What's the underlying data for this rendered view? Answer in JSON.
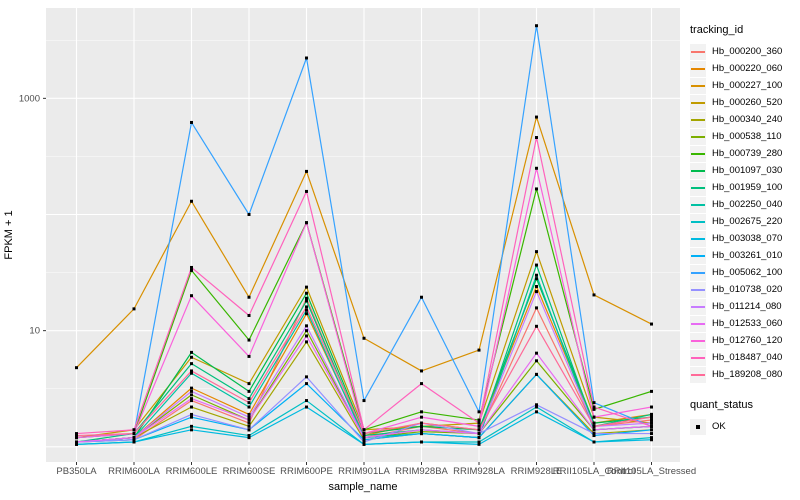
{
  "chart_data": {
    "type": "line",
    "title": "",
    "xlabel": "sample_name",
    "ylabel": "FPKM + 1",
    "y_scale": "log10",
    "y_axis_range_approx": [
      0.75,
      6000
    ],
    "y_ticks": [
      {
        "label": "10",
        "value": 10
      },
      {
        "label": "1000",
        "value": 1000
      }
    ],
    "grid": "major-white-on-gray-panel",
    "panel_bg": "#EBEBEB",
    "grid_color": "#FFFFFF",
    "tick_text_color": "#4D4D4D",
    "point_marker": {
      "shape": "square",
      "color": "#000000"
    },
    "legend_position": "right",
    "legend": {
      "color_title": "tracking_id",
      "shape_title": "quant_status",
      "shape_items": [
        {
          "label": "OK",
          "shape": "square",
          "color": "#000000"
        }
      ]
    },
    "categories": [
      "PB350LA",
      "RRIM600LA",
      "RRIM600LE",
      "RRIM600SE",
      "RRIM600PE",
      "RRIM901LA",
      "RRIM928BA",
      "RRIM928LA",
      "RRIM928LE",
      "RRII105LA_Control",
      "RRII105LA_Stressed"
    ],
    "series": [
      {
        "name": "Hb_000200_360",
        "color": "#F8766D",
        "values": [
          1.1,
          1.15,
          2.5,
          1.6,
          19,
          1.2,
          1.5,
          1.3,
          15.7,
          1.5,
          1.7
        ]
      },
      {
        "name": "Hb_000220_060",
        "color": "#E58700",
        "values": [
          1.1,
          1.2,
          3.2,
          1.9,
          14,
          1.25,
          1.6,
          1.4,
          24,
          1.6,
          1.9
        ]
      },
      {
        "name": "Hb_000227_100",
        "color": "#D89000",
        "values": [
          4.8,
          15.4,
          130,
          19.4,
          235,
          8.6,
          4.5,
          6.8,
          690,
          20.3,
          11.4
        ]
      },
      {
        "name": "Hb_000260_520",
        "color": "#C09B00",
        "values": [
          1.2,
          1.4,
          5.9,
          3.5,
          23.7,
          1.4,
          1.5,
          1.6,
          47.9,
          1.8,
          1.6
        ]
      },
      {
        "name": "Hb_000340_240",
        "color": "#A3A500",
        "values": [
          1.1,
          1.2,
          2.2,
          1.5,
          8,
          1.15,
          1.3,
          1.2,
          4.2,
          1.3,
          1.4
        ]
      },
      {
        "name": "Hb_000538_110",
        "color": "#7CAE00",
        "values": [
          1.1,
          1.2,
          2.8,
          1.7,
          10,
          1.2,
          1.35,
          1.3,
          5.5,
          1.4,
          1.5
        ]
      },
      {
        "name": "Hb_000739_280",
        "color": "#39B600",
        "values": [
          1.2,
          1.3,
          33,
          8.3,
          85,
          1.4,
          2.0,
          1.7,
          166,
          2.1,
          3.0
        ]
      },
      {
        "name": "Hb_001097_030",
        "color": "#00BB4E",
        "values": [
          1.1,
          1.2,
          6.5,
          3.0,
          21,
          1.3,
          1.5,
          1.4,
          28,
          1.6,
          1.8
        ]
      },
      {
        "name": "Hb_001959_100",
        "color": "#00BF7D",
        "values": [
          1.1,
          1.3,
          5.2,
          2.6,
          18,
          1.25,
          1.4,
          1.3,
          36.7,
          1.5,
          1.9
        ]
      },
      {
        "name": "Hb_002250_040",
        "color": "#00C1A3",
        "values": [
          1.1,
          1.2,
          4.3,
          2.2,
          15,
          1.2,
          1.3,
          1.2,
          30,
          1.4,
          1.5
        ]
      },
      {
        "name": "Hb_002675_220",
        "color": "#00BFC4",
        "values": [
          1.05,
          1.1,
          1.5,
          1.25,
          2.5,
          1.05,
          1.1,
          1.1,
          2.2,
          1.1,
          1.2
        ]
      },
      {
        "name": "Hb_003038_070",
        "color": "#00BAE0",
        "values": [
          1.05,
          1.1,
          1.4,
          1.2,
          2.2,
          1.05,
          1.1,
          1.05,
          2.0,
          1.1,
          1.15
        ]
      },
      {
        "name": "Hb_003261_010",
        "color": "#00B0F6",
        "values": [
          1.1,
          1.15,
          1.8,
          1.4,
          3.5,
          1.15,
          1.3,
          1.2,
          4.2,
          1.25,
          1.4
        ]
      },
      {
        "name": "Hb_005062_100",
        "color": "#35A2FF",
        "values": [
          1.2,
          1.3,
          620,
          100,
          2225,
          2.5,
          19.4,
          2.0,
          4220,
          2.4,
          1.5
        ]
      },
      {
        "name": "Hb_010738_020",
        "color": "#9590FF",
        "values": [
          1.1,
          1.15,
          1.9,
          1.4,
          4.0,
          1.1,
          1.6,
          1.3,
          2.3,
          1.3,
          1.3
        ]
      },
      {
        "name": "Hb_011214_080",
        "color": "#C77CFF",
        "values": [
          1.1,
          1.2,
          3.0,
          1.8,
          11,
          1.2,
          1.4,
          1.3,
          21.7,
          1.5,
          1.6
        ]
      },
      {
        "name": "Hb_012533_060",
        "color": "#E76BF3",
        "values": [
          1.1,
          1.2,
          2.6,
          1.7,
          9,
          1.2,
          1.4,
          1.3,
          6.4,
          1.4,
          1.5
        ]
      },
      {
        "name": "Hb_012760_120",
        "color": "#FA62DB",
        "values": [
          1.2,
          1.3,
          20,
          6.0,
          85,
          1.3,
          1.8,
          1.5,
          250,
          1.8,
          2.2
        ]
      },
      {
        "name": "Hb_018487_040",
        "color": "#FF62BC",
        "values": [
          1.3,
          1.4,
          35,
          13.5,
          158,
          1.4,
          3.5,
          1.6,
          460,
          2.2,
          1.5
        ]
      },
      {
        "name": "Hb_189208_080",
        "color": "#FF6A98",
        "values": [
          1.25,
          1.3,
          4.5,
          2.4,
          16,
          1.3,
          1.6,
          1.4,
          10.9,
          1.5,
          1.8
        ]
      }
    ]
  }
}
